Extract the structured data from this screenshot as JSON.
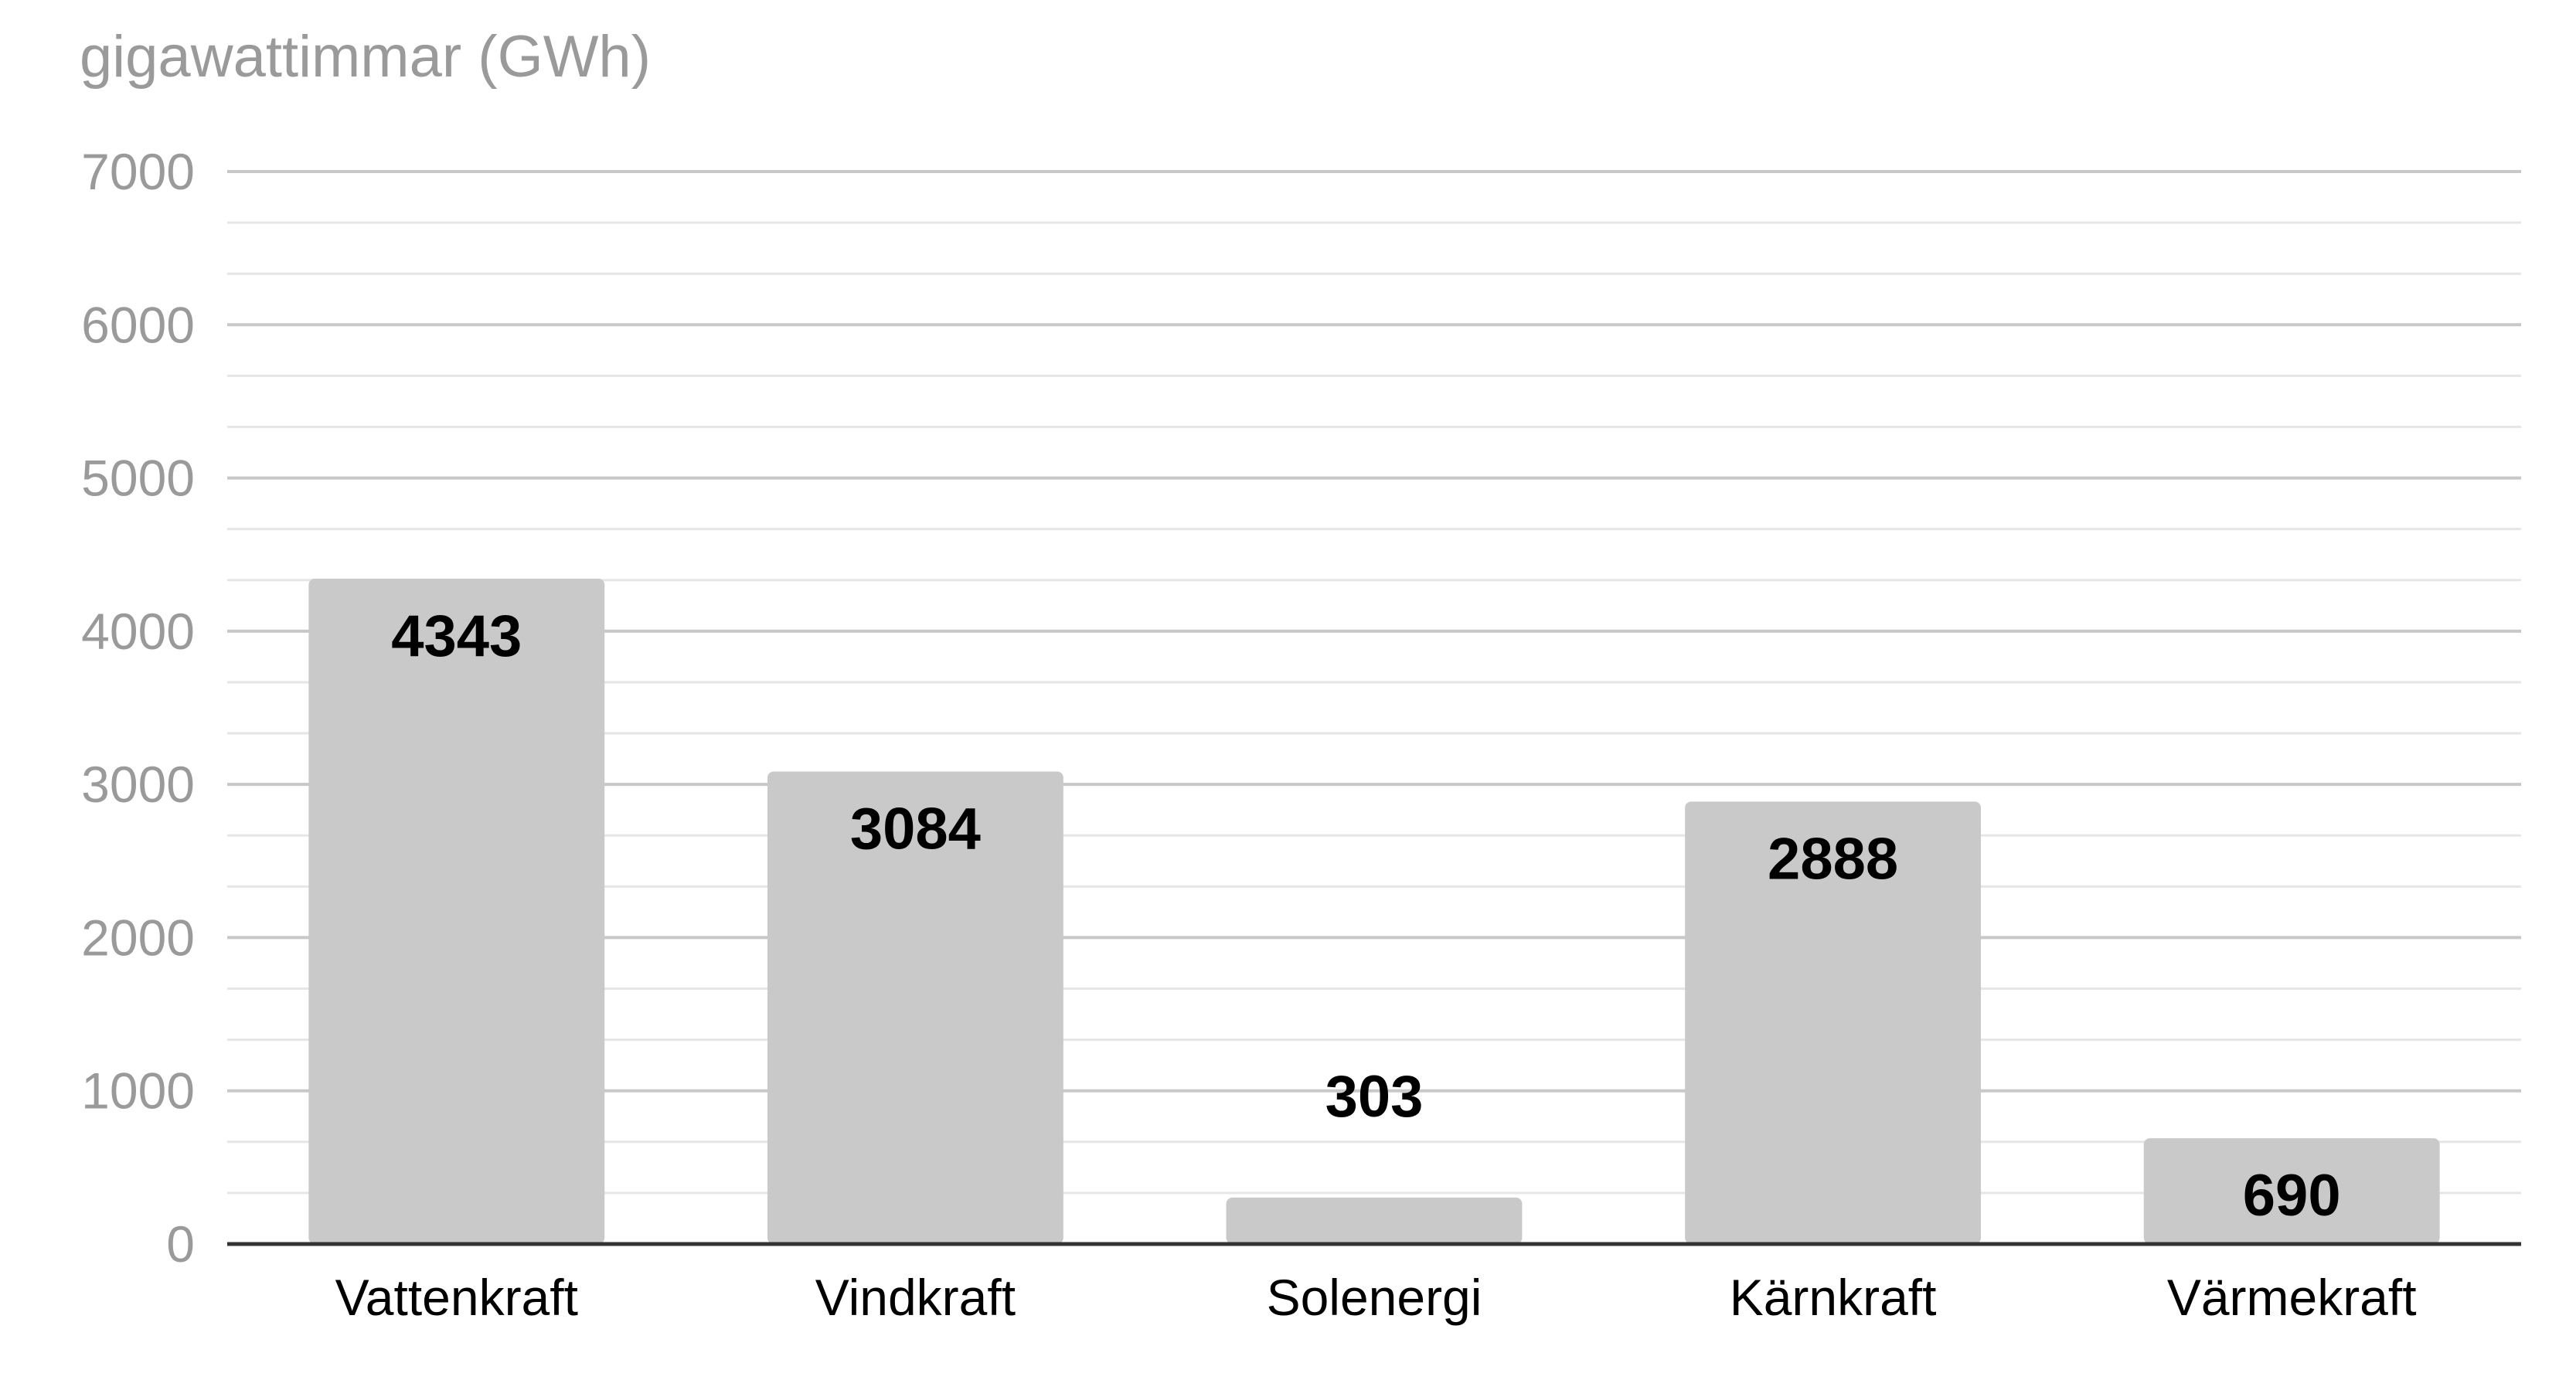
{
  "chart_data": {
    "type": "bar",
    "title": "",
    "unit_label": "gigawattimmar (GWh)",
    "xlabel": "",
    "ylabel": "",
    "categories": [
      "Vattenkraft",
      "Vindkraft",
      "Solenergi",
      "Kärnkraft",
      "Värmekraft"
    ],
    "values": [
      4343,
      3084,
      303,
      2888,
      690
    ],
    "data_labels": [
      "4343",
      "3084",
      "303",
      "2888",
      "690"
    ],
    "ylim": [
      0,
      7000
    ],
    "y_ticks": [
      0,
      1000,
      2000,
      3000,
      4000,
      5000,
      6000,
      7000
    ],
    "y_tick_labels": [
      "0",
      "1000",
      "2000",
      "3000",
      "4000",
      "5000",
      "6000",
      "7000"
    ],
    "minor_grid_step": 333.33,
    "grid": true,
    "legend": "none",
    "colors": {
      "bar": "#c9c9c9",
      "major_grid": "#c8c8c8",
      "minor_grid": "#e6e6e6",
      "axis": "#333333",
      "tick_text": "#9a9a9a"
    }
  }
}
